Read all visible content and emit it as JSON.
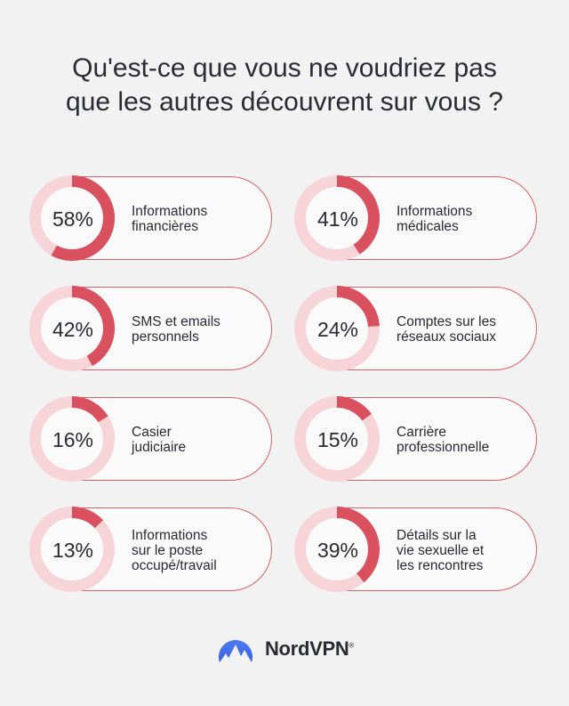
{
  "title_lines": [
    "Qu'est-ce que vous ne voudriez pas",
    "que les autres découvrent sur vous ?"
  ],
  "colors": {
    "accent": "#d9505e",
    "track": "#f7d4d7",
    "text": "#2a2a33",
    "background": "#f2f2f2"
  },
  "chart_data": {
    "type": "donut-grid",
    "title": "Qu'est-ce que vous ne voudriez pas que les autres découvrent sur vous ?",
    "items": [
      {
        "value": 58,
        "value_label": "58%",
        "label_lines": [
          "Informations",
          "financières"
        ]
      },
      {
        "value": 41,
        "value_label": "41%",
        "label_lines": [
          "Informations",
          "médicales"
        ]
      },
      {
        "value": 42,
        "value_label": "42%",
        "label_lines": [
          "SMS et emails",
          "personnels"
        ]
      },
      {
        "value": 24,
        "value_label": "24%",
        "label_lines": [
          "Comptes sur les",
          "réseaux sociaux"
        ]
      },
      {
        "value": 16,
        "value_label": "16%",
        "label_lines": [
          "Casier",
          "judiciaire"
        ]
      },
      {
        "value": 15,
        "value_label": "15%",
        "label_lines": [
          "Carrière",
          "professionnelle"
        ]
      },
      {
        "value": 13,
        "value_label": "13%",
        "label_lines": [
          "Informations",
          "sur le poste",
          "occupé/travail"
        ]
      },
      {
        "value": 39,
        "value_label": "39%",
        "label_lines": [
          "Détails sur la",
          "vie sexuelle et",
          "les rencontres"
        ]
      }
    ]
  },
  "brand": {
    "name": "NordVPN",
    "mark": "®",
    "logo_icon": "mountain-logo-icon"
  }
}
